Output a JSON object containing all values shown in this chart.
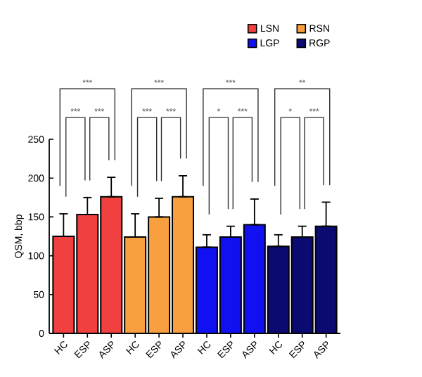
{
  "chart_data": {
    "type": "bar",
    "ylabel": "QSM, bbp",
    "categories": [
      "HC",
      "ESP",
      "ASP",
      "HC",
      "ESP",
      "ASP",
      "HC",
      "ESP",
      "ASP",
      "HC",
      "ESP",
      "ASP"
    ],
    "series": [
      {
        "name": "LSN",
        "color": "#f04040",
        "values": [
          125,
          153,
          176,
          null,
          null,
          null,
          null,
          null,
          null,
          null,
          null,
          null
        ],
        "errors": [
          [
            125,
            154
          ],
          [
            153,
            175
          ],
          [
            176,
            201
          ],
          null,
          null,
          null,
          null,
          null,
          null,
          null,
          null,
          null
        ]
      },
      {
        "name": "RSN",
        "color": "#f8a040",
        "values": [
          null,
          null,
          null,
          124,
          150,
          176,
          null,
          null,
          null,
          null,
          null,
          null
        ],
        "errors": [
          null,
          null,
          null,
          [
            124,
            154
          ],
          [
            150,
            174
          ],
          [
            176,
            203
          ],
          null,
          null,
          null,
          null,
          null,
          null
        ]
      },
      {
        "name": "LGP",
        "color": "#1010f0",
        "values": [
          null,
          null,
          null,
          null,
          null,
          null,
          111,
          124,
          140,
          null,
          null,
          null
        ],
        "errors": [
          null,
          null,
          null,
          null,
          null,
          null,
          [
            111,
            127
          ],
          [
            124,
            138
          ],
          [
            140,
            173
          ],
          null,
          null,
          null
        ]
      },
      {
        "name": "RGP",
        "color": "#0a0a70",
        "values": [
          null,
          null,
          null,
          null,
          null,
          null,
          null,
          null,
          null,
          112,
          124,
          138
        ],
        "errors": [
          null,
          null,
          null,
          null,
          null,
          null,
          null,
          null,
          null,
          [
            112,
            127
          ],
          [
            124,
            138
          ],
          [
            138,
            169
          ]
        ]
      }
    ],
    "ylim": [
      0,
      250
    ],
    "yticks": [
      0,
      50,
      100,
      150,
      200,
      250
    ],
    "grid": false,
    "legend": "top right",
    "annotations": [
      "***",
      "***",
      "***",
      "***",
      "***",
      "***",
      "***",
      "*",
      "***",
      "**",
      "*",
      "***"
    ]
  }
}
